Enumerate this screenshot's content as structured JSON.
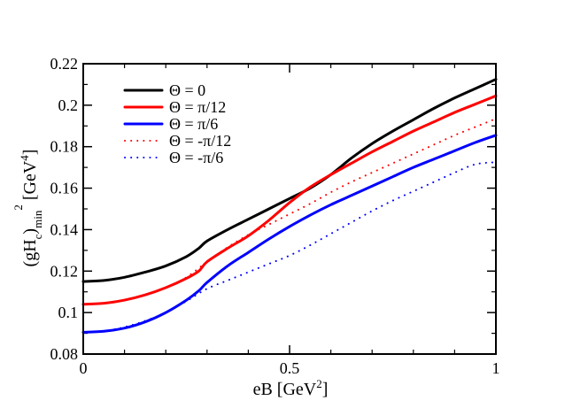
{
  "chart_data": {
    "type": "line",
    "title": "",
    "xlabel": {
      "base": "eB [GeV",
      "sup": "2",
      "tail": "]"
    },
    "ylabel": {
      "main": "(gH",
      "sub1": "c",
      "mid": ")",
      "sub2": "min",
      "sup": "2",
      "unit": " [GeV",
      "unit_sup": "4",
      "unit_tail": "]"
    },
    "xlim": [
      0,
      1
    ],
    "ylim": [
      0.08,
      0.22
    ],
    "x_major_ticks": [
      0,
      0.5,
      1
    ],
    "x_tick_labels": [
      "0",
      "0.5",
      "1"
    ],
    "x_minor_ticks": [
      0.1,
      0.2,
      0.3,
      0.4,
      0.6,
      0.7,
      0.8,
      0.9
    ],
    "y_major_ticks": [
      0.08,
      0.1,
      0.12,
      0.14,
      0.16,
      0.18,
      0.2,
      0.22
    ],
    "y_tick_labels": [
      "0.08",
      "0.1",
      "0.12",
      "0.14",
      "0.16",
      "0.18",
      "0.2",
      "0.22"
    ],
    "y_minor_ticks": [
      0.09,
      0.11,
      0.13,
      0.15,
      0.17,
      0.19,
      0.21
    ],
    "grid": false,
    "legend_position": "top-left",
    "series": [
      {
        "name": "Θ = 0",
        "color": "#000000",
        "style": "solid",
        "x": [
          0,
          0.05,
          0.1,
          0.15,
          0.2,
          0.25,
          0.28,
          0.3,
          0.35,
          0.4,
          0.45,
          0.5,
          0.55,
          0.6,
          0.65,
          0.7,
          0.75,
          0.8,
          0.85,
          0.9,
          0.95,
          1.0
        ],
        "y": [
          0.115,
          0.1155,
          0.117,
          0.1195,
          0.1225,
          0.127,
          0.131,
          0.1345,
          0.14,
          0.145,
          0.15,
          0.155,
          0.16,
          0.1665,
          0.1745,
          0.1815,
          0.1875,
          0.193,
          0.1985,
          0.2035,
          0.208,
          0.2125
        ]
      },
      {
        "name": "Θ = π/12",
        "color": "#ff0000",
        "style": "solid",
        "x": [
          0,
          0.05,
          0.1,
          0.15,
          0.2,
          0.25,
          0.28,
          0.3,
          0.35,
          0.4,
          0.45,
          0.5,
          0.55,
          0.6,
          0.65,
          0.7,
          0.75,
          0.8,
          0.85,
          0.9,
          0.95,
          1.0
        ],
        "y": [
          0.104,
          0.1045,
          0.106,
          0.1085,
          0.112,
          0.1165,
          0.12,
          0.1245,
          0.131,
          0.137,
          0.1445,
          0.153,
          0.1605,
          0.1665,
          0.172,
          0.1775,
          0.1825,
          0.1875,
          0.192,
          0.1965,
          0.2005,
          0.2045
        ]
      },
      {
        "name": "Θ = π/6",
        "color": "#0000ff",
        "style": "solid",
        "x": [
          0,
          0.05,
          0.1,
          0.15,
          0.2,
          0.25,
          0.28,
          0.3,
          0.35,
          0.4,
          0.45,
          0.5,
          0.55,
          0.6,
          0.65,
          0.7,
          0.75,
          0.8,
          0.85,
          0.9,
          0.95,
          1.0
        ],
        "y": [
          0.0905,
          0.091,
          0.0925,
          0.0955,
          0.1,
          0.106,
          0.1105,
          0.1145,
          0.1225,
          0.129,
          0.1355,
          0.1415,
          0.147,
          0.152,
          0.1565,
          0.161,
          0.1655,
          0.17,
          0.174,
          0.178,
          0.182,
          0.1855
        ]
      },
      {
        "name": "Θ = -π/12",
        "color": "#ff0000",
        "style": "dotted",
        "x": [
          0,
          0.05,
          0.1,
          0.15,
          0.2,
          0.25,
          0.3,
          0.35,
          0.4,
          0.45,
          0.5,
          0.55,
          0.6,
          0.65,
          0.7,
          0.75,
          0.8,
          0.85,
          0.9,
          0.95,
          1.0
        ],
        "y": [
          0.104,
          0.1045,
          0.106,
          0.1085,
          0.112,
          0.117,
          0.1245,
          0.1315,
          0.1375,
          0.1425,
          0.1475,
          0.1525,
          0.158,
          0.163,
          0.1675,
          0.172,
          0.1765,
          0.181,
          0.1855,
          0.1895,
          0.1935
        ]
      },
      {
        "name": "Θ = -π/6",
        "color": "#0000ff",
        "style": "dotted",
        "x": [
          0,
          0.05,
          0.1,
          0.15,
          0.2,
          0.25,
          0.3,
          0.35,
          0.4,
          0.45,
          0.5,
          0.55,
          0.6,
          0.65,
          0.7,
          0.75,
          0.8,
          0.85,
          0.9,
          0.95,
          1.0
        ],
        "y": [
          0.0905,
          0.091,
          0.093,
          0.096,
          0.1,
          0.1055,
          0.1115,
          0.1155,
          0.1195,
          0.1235,
          0.1275,
          0.1325,
          0.138,
          0.1435,
          0.149,
          0.154,
          0.1585,
          0.163,
          0.1675,
          0.1715,
          0.1725
        ]
      }
    ]
  }
}
